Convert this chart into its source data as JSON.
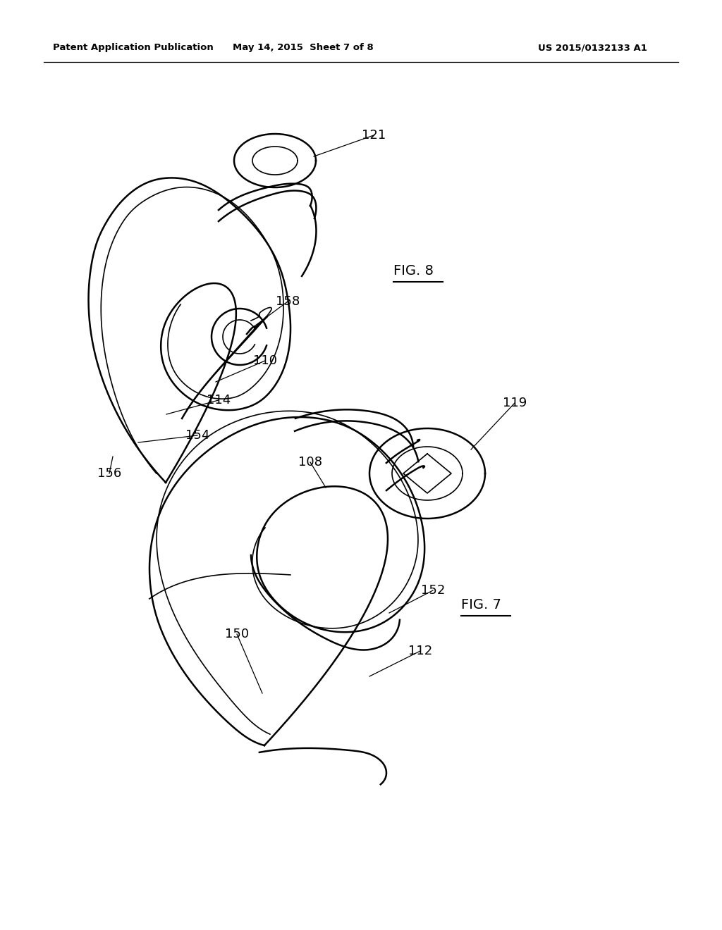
{
  "background_color": "#ffffff",
  "header_left": "Patent Application Publication",
  "header_center": "May 14, 2015  Sheet 7 of 8",
  "header_right": "US 2015/0132133 A1",
  "fig8_label": "FIG. 8",
  "fig7_label": "FIG. 7"
}
